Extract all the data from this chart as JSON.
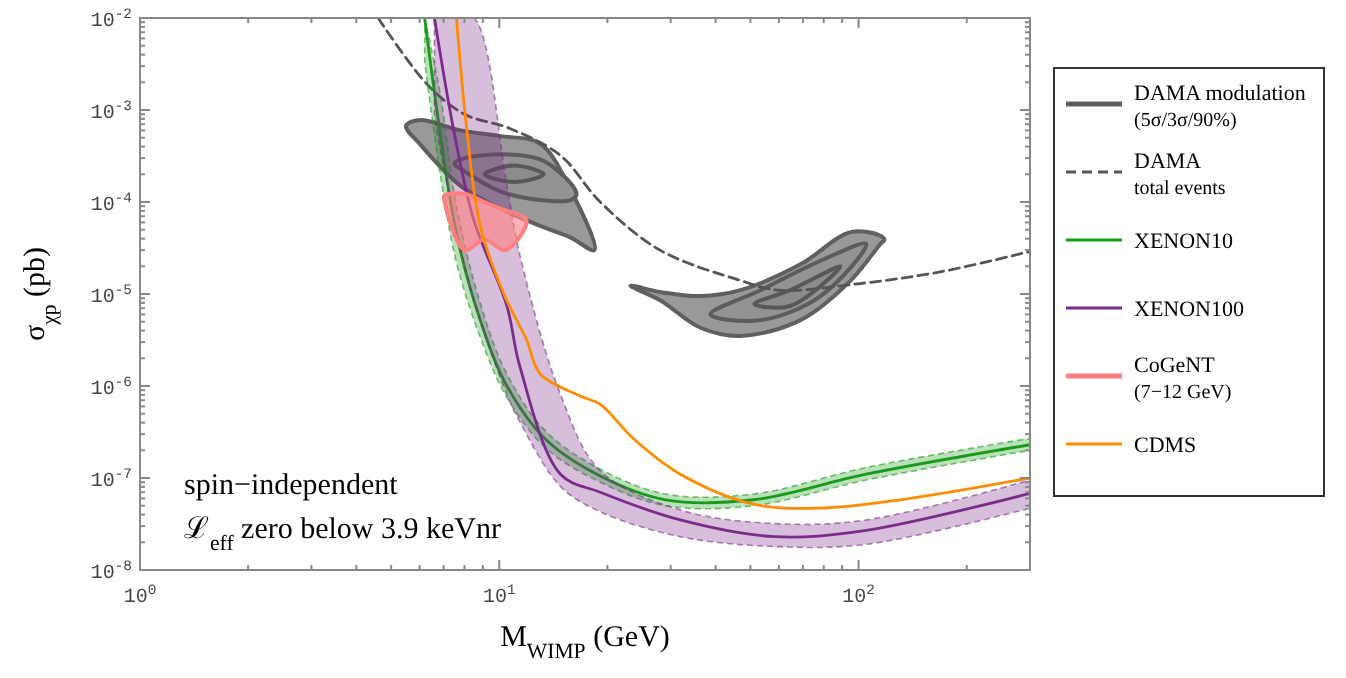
{
  "chart_data": {
    "type": "line",
    "xlabel": "M$_{WIMP}$ (GeV)",
    "ylabel": "σ$_{χp}$ (pb)",
    "log": "xy",
    "legend": "right",
    "xlim": [
      1,
      300
    ],
    "ylim": [
      1e-08,
      0.01
    ],
    "xticks": [
      {
        "value": 1,
        "label": "10$^{0}$"
      },
      {
        "value": 2,
        "label": null
      },
      {
        "value": 3,
        "label": null
      },
      {
        "value": 4,
        "label": null
      },
      {
        "value": 5,
        "label": null
      },
      {
        "value": 6,
        "label": null
      },
      {
        "value": 7,
        "label": null
      },
      {
        "value": 8,
        "label": null
      },
      {
        "value": 9,
        "label": null
      },
      {
        "value": 10,
        "label": "10$^{1}$"
      },
      {
        "value": 20,
        "label": null
      },
      {
        "value": 30,
        "label": null
      },
      {
        "value": 40,
        "label": null
      },
      {
        "value": 50,
        "label": null
      },
      {
        "value": 60,
        "label": null
      },
      {
        "value": 70,
        "label": null
      },
      {
        "value": 80,
        "label": null
      },
      {
        "value": 90,
        "label": null
      },
      {
        "value": 100,
        "label": "10$^{2}$"
      },
      {
        "value": 200,
        "label": null
      },
      {
        "value": 300,
        "label": null
      }
    ],
    "yticks": [
      {
        "value": 1e-08,
        "label": "10$^{-8}$"
      },
      {
        "value": 2e-08,
        "label": null
      },
      {
        "value": 3e-08,
        "label": null
      },
      {
        "value": 4e-08,
        "label": null
      },
      {
        "value": 5e-08,
        "label": null
      },
      {
        "value": 6e-08,
        "label": null
      },
      {
        "value": 7e-08,
        "label": null
      },
      {
        "value": 8e-08,
        "label": null
      },
      {
        "value": 9e-08,
        "label": null
      },
      {
        "value": 1e-07,
        "label": "10$^{-7}$"
      },
      {
        "value": 2e-07,
        "label": null
      },
      {
        "value": 3e-07,
        "label": null
      },
      {
        "value": 4e-07,
        "label": null
      },
      {
        "value": 5e-07,
        "label": null
      },
      {
        "value": 6e-07,
        "label": null
      },
      {
        "value": 7e-07,
        "label": null
      },
      {
        "value": 8e-07,
        "label": null
      },
      {
        "value": 9e-07,
        "label": null
      },
      {
        "value": 1e-06,
        "label": "10$^{-6}$"
      },
      {
        "value": 2e-06,
        "label": null
      },
      {
        "value": 3e-06,
        "label": null
      },
      {
        "value": 4e-06,
        "label": null
      },
      {
        "value": 5e-06,
        "label": null
      },
      {
        "value": 6e-06,
        "label": null
      },
      {
        "value": 7e-06,
        "label": null
      },
      {
        "value": 8e-06,
        "label": null
      },
      {
        "value": 9e-06,
        "label": null
      },
      {
        "value": 1e-05,
        "label": "10$^{-5}$"
      },
      {
        "value": 2e-05,
        "label": null
      },
      {
        "value": 3e-05,
        "label": null
      },
      {
        "value": 4e-05,
        "label": null
      },
      {
        "value": 5e-05,
        "label": null
      },
      {
        "value": 6e-05,
        "label": null
      },
      {
        "value": 7e-05,
        "label": null
      },
      {
        "value": 8e-05,
        "label": null
      },
      {
        "value": 9e-05,
        "label": null
      },
      {
        "value": 0.0001,
        "label": "10$^{-4}$"
      },
      {
        "value": 0.0002,
        "label": null
      },
      {
        "value": 0.0003,
        "label": null
      },
      {
        "value": 0.0004,
        "label": null
      },
      {
        "value": 0.0005,
        "label": null
      },
      {
        "value": 0.0006,
        "label": null
      },
      {
        "value": 0.0007,
        "label": null
      },
      {
        "value": 0.0008,
        "label": null
      },
      {
        "value": 0.0009,
        "label": null
      },
      {
        "value": 0.001,
        "label": "10$^{-3}$"
      },
      {
        "value": 0.002,
        "label": null
      },
      {
        "value": 0.003,
        "label": null
      },
      {
        "value": 0.004,
        "label": null
      },
      {
        "value": 0.005,
        "label": null
      },
      {
        "value": 0.006,
        "label": null
      },
      {
        "value": 0.007,
        "label": null
      },
      {
        "value": 0.008,
        "label": null
      },
      {
        "value": 0.009,
        "label": null
      },
      {
        "value": 0.01,
        "label": "10$^{-2}$"
      }
    ],
    "annotations": [
      "spin−independent",
      "ℒ$_{eff}$ zero below 3.9 keVnr"
    ],
    "series": [
      {
        "type": "area",
        "name": "DAMA modulation\n(5σ/3σ/90%)",
        "color": "#999999",
        "x": [
          5.5,
          6.0,
          7.8,
          10.1,
          13.0,
          15.8,
          18.4,
          15.8,
          13.0,
          10.1,
          7.8,
          6.0
        ],
        "values": [
          0.00067,
          0.00078,
          0.0006,
          0.00052,
          0.00043,
          0.000135,
          3e-05,
          4.1e-05,
          5.5e-05,
          8.5e-05,
          0.00015,
          0.00043
        ]
      },
      {
        "type": "area",
        "color": "#939393",
        "x": [
          7.5,
          7.8,
          10.1,
          13.0,
          15.8,
          16.4,
          15.8,
          13.0,
          10.1,
          7.8
        ],
        "values": [
          0.00026,
          0.00029,
          0.00033,
          0.00029,
          0.00016,
          0.00012,
          0.000105,
          0.000105,
          0.00013,
          0.00023
        ]
      },
      {
        "type": "area",
        "color": "#8c8c8c",
        "x": [
          9.1,
          11.0,
          13.3,
          11.0
        ],
        "values": [
          0.0002,
          0.00025,
          0.0002,
          0.000165
        ]
      },
      {
        "type": "area",
        "color": "#999999",
        "x": [
          23.2,
          28.1,
          36.3,
          46.9,
          68.9,
          95,
          115,
          118,
          115,
          95,
          68.9,
          46.9,
          36.3,
          28.1
        ],
        "values": [
          1.23e-05,
          1.05e-05,
          9.5e-06,
          1.1e-05,
          2.1e-05,
          4.7e-05,
          4.3e-05,
          3.9e-05,
          3.5e-05,
          1.4e-05,
          5.2e-06,
          3.5e-06,
          4.3e-06,
          8.5e-06
        ]
      },
      {
        "type": "area",
        "color": "#939393",
        "x": [
          38.7,
          53.3,
          78.4,
          105,
          78.4,
          53.3
        ],
        "values": [
          6e-06,
          1.1e-05,
          2.3e-05,
          3.5e-05,
          9.5e-06,
          5.2e-06
        ]
      },
      {
        "type": "area",
        "color": "#8c8c8c",
        "x": [
          51.3,
          64.5,
          89,
          64.5
        ],
        "values": [
          7.8e-06,
          1.1e-05,
          2e-05,
          7.4e-06
        ]
      },
      {
        "name": "DAMA\ntotal events",
        "color": "#555555",
        "line_style": "dashed",
        "x": [
          4.6,
          6.3,
          8.0,
          10.7,
          14.8,
          19.1,
          28,
          47,
          60,
          101,
          170,
          300
        ],
        "values": [
          0.01,
          0.0019,
          0.0009,
          0.00063,
          0.00032,
          0.0001,
          3e-05,
          1.4e-05,
          1.1e-05,
          1.3e-05,
          1.75e-05,
          2.9e-05
        ]
      },
      {
        "name": "XENON10",
        "color": "#1a9a1a",
        "x": [
          6.2,
          6.85,
          7.6,
          8.85,
          10.5,
          13.5,
          19.1,
          29,
          51,
          105,
          300
        ],
        "values": [
          0.01,
          0.00055,
          4.5e-05,
          5.2e-06,
          1e-06,
          2.6e-07,
          1.05e-07,
          5.8e-08,
          5.8e-08,
          1.1e-07,
          2.3e-07
        ],
        "lower": [
          0.0033,
          0.0002,
          2.2e-05,
          3.4e-06,
          7.5e-07,
          2.1e-07,
          9e-08,
          5e-08,
          5e-08,
          9.5e-08,
          2e-07
        ],
        "upper": [
          0.01,
          0.0015,
          9e-05,
          8e-06,
          1.35e-06,
          3.2e-07,
          1.25e-07,
          6.7e-08,
          6.7e-08,
          1.3e-07,
          2.7e-07
        ]
      },
      {
        "name": "XENON100",
        "color": "#7b2c8b",
        "x": [
          6.6,
          7.5,
          8.5,
          10.5,
          11.4,
          14.8,
          19.1,
          31.9,
          58.3,
          105,
          300
        ],
        "values": [
          0.01,
          0.00055,
          6.3e-05,
          7.4e-06,
          1.65e-06,
          1.1e-07,
          7e-08,
          3.5e-08,
          2.3e-08,
          2.7e-08,
          6.8e-08
        ],
        "lower": [
          0.00084,
          6.3e-05,
          8.5e-06,
          8.1e-07,
          4.1e-07,
          8.1e-08,
          4.3e-08,
          2.3e-08,
          1.8e-08,
          1.9e-08,
          4.7e-08
        ],
        "upper": [
          0.01,
          0.01,
          0.01,
          0.00015,
          2.7e-05,
          8.1e-07,
          1.2e-07,
          4.5e-08,
          3.2e-08,
          3.5e-08,
          9.5e-08
        ]
      },
      {
        "type": "area",
        "name": "CoGeNT\n(7−12 GeV)",
        "color": "#ff7f7f",
        "x": [
          7.03,
          8.0,
          9.1,
          10.4,
          11.9,
          10.4,
          9.1,
          8.0,
          7.03
        ],
        "values": [
          0.000117,
          0.000123,
          0.0001,
          8.1e-05,
          6.3e-05,
          3e-05,
          3.9e-05,
          3e-05,
          0.000105
        ]
      },
      {
        "name": "CDMS",
        "color": "#ff8c00",
        "x": [
          7.6,
          8.1,
          8.85,
          10.3,
          11.9,
          13.0,
          16.8,
          19.1,
          23.8,
          31.9,
          51,
          78,
          131,
          300
        ],
        "values": [
          0.01,
          0.00067,
          5.5e-05,
          1e-05,
          3.2e-06,
          1.35e-06,
          7.8e-07,
          6.3e-07,
          2.6e-07,
          1.1e-07,
          5.2e-08,
          4.7e-08,
          5.8e-08,
          1e-07
        ]
      }
    ]
  }
}
